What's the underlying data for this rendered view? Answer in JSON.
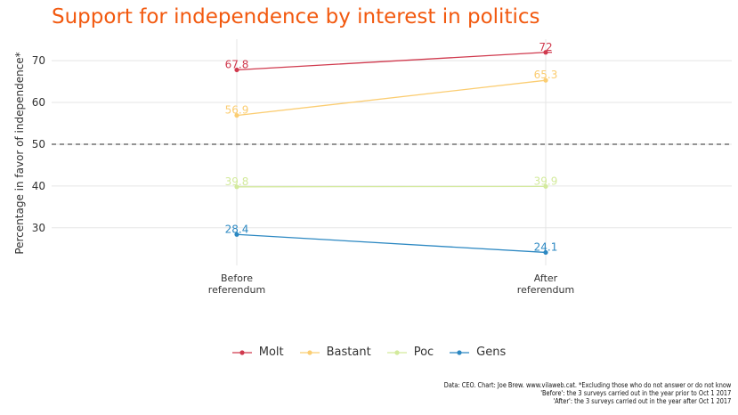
{
  "colors": {
    "title": "#f2590f",
    "grid": "#e5e5e5",
    "reference": "#555555"
  },
  "chart_data": {
    "type": "line",
    "title": "Support for independence by interest in politics",
    "ylabel": "Percentage in favor of independence*",
    "xlabel": "",
    "categories": [
      "Before\nreferendum",
      "After\nreferendum"
    ],
    "ylim": [
      21,
      76
    ],
    "yticks": [
      30,
      40,
      50,
      60,
      70
    ],
    "grid": true,
    "reference_line": 50,
    "legend_position": "bottom",
    "series": [
      {
        "name": "Molt",
        "values": [
          67.8,
          72
        ],
        "labels": [
          "67.8",
          "72"
        ],
        "color": "#d03a4e"
      },
      {
        "name": "Bastant",
        "values": [
          56.9,
          65.3
        ],
        "labels": [
          "56.9",
          "65.3"
        ],
        "color": "#fbcd72"
      },
      {
        "name": "Poc",
        "values": [
          39.8,
          39.9
        ],
        "labels": [
          "39.8",
          "39.9"
        ],
        "color": "#d3ea9c"
      },
      {
        "name": "Gens",
        "values": [
          28.4,
          24.1
        ],
        "labels": [
          "28.4",
          "24.1"
        ],
        "color": "#2c88c2"
      }
    ],
    "caption": [
      "Data: CEO. Chart: Joe Brew. www.vilaweb.cat. *Excluding those who do not answer or do not know",
      "'Before': the 3 surveys carried out in the year prior to Oct 1 2017",
      "'After': the 3 surveys carried out in the year after Oct 1 2017"
    ]
  }
}
